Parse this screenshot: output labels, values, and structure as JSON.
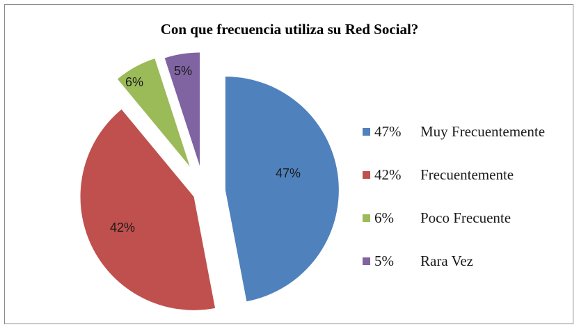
{
  "chart_data": {
    "type": "pie",
    "title": "Con que frecuencia utiliza su Red Social?",
    "exploded": true,
    "legend_position": "right",
    "slices": [
      {
        "label": "Muy Frecuentemente",
        "value": 47,
        "display": "47%",
        "color": "#4f81bd"
      },
      {
        "label": "Frecuentemente",
        "value": 42,
        "display": "42%",
        "color": "#c0504d"
      },
      {
        "label": "Poco Frecuente",
        "value": 6,
        "display": "6%",
        "color": "#9bbb59"
      },
      {
        "label": "Rara Vez",
        "value": 5,
        "display": "5%",
        "color": "#8064a2"
      }
    ]
  }
}
